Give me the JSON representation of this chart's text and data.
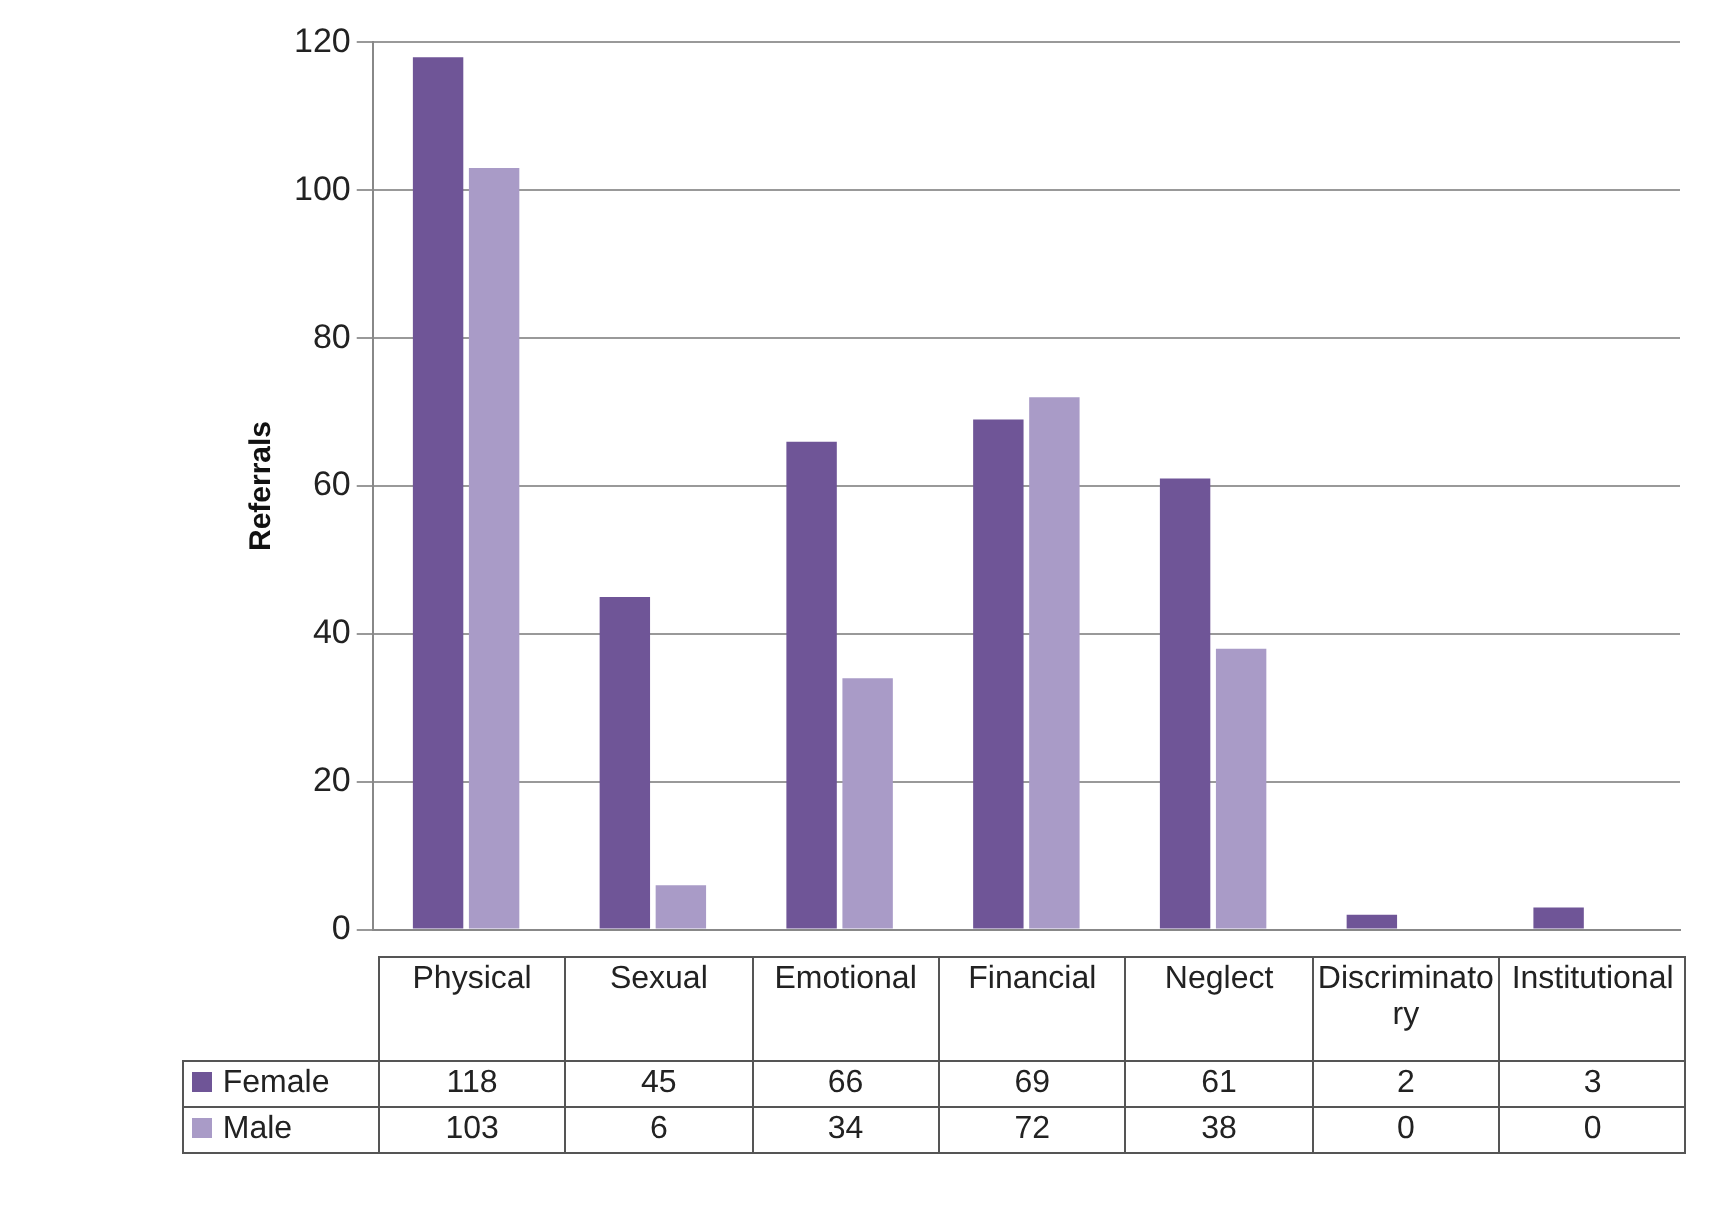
{
  "chart_data": {
    "type": "bar",
    "ylabel": "Referrals",
    "categories": [
      "Physical",
      "Sexual",
      "Emotional",
      "Financial",
      "Neglect",
      "Discriminatory",
      "Institutional"
    ],
    "series": [
      {
        "name": "Female",
        "color": "#6f5597",
        "values": [
          118,
          45,
          66,
          69,
          61,
          2,
          3
        ]
      },
      {
        "name": "Male",
        "color": "#a99bc7",
        "values": [
          103,
          6,
          34,
          72,
          38,
          0,
          0
        ]
      }
    ],
    "ylim": [
      0,
      120
    ],
    "yticks": [
      0,
      20,
      40,
      60,
      80,
      100,
      120
    ],
    "grid": "y",
    "legend": "bottom",
    "data_labels": true
  }
}
